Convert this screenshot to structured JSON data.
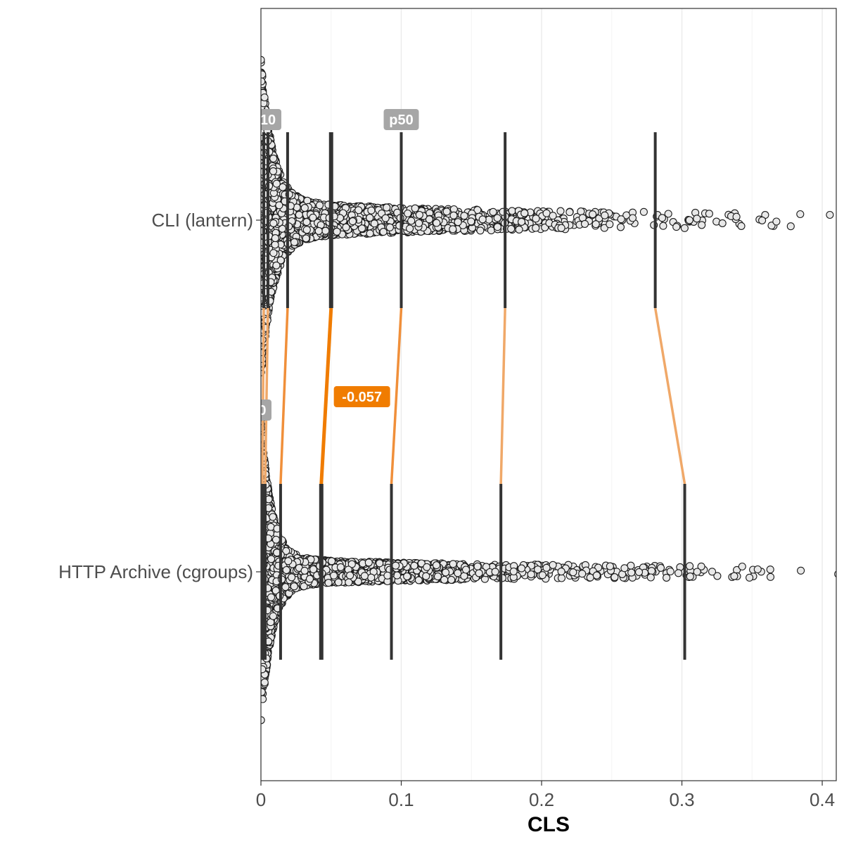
{
  "chart_data": {
    "type": "scatter",
    "subtype": "beeswarm-with-quantile-segments",
    "title": "",
    "xlabel": "CLS",
    "ylabel": "",
    "xlim": [
      0,
      0.41
    ],
    "x_ticks": [
      0,
      0.1,
      0.2,
      0.3,
      0.4
    ],
    "x_tick_labels": [
      "0",
      "0.1",
      "0.2",
      "0.3",
      "0.4"
    ],
    "grid": "vertical major and minor",
    "categories": [
      "CLI (lantern)",
      "HTTP Archive (cgroups)"
    ],
    "series": [
      {
        "name": "CLI (lantern)",
        "quantile_values": [
          0.002,
          0.005,
          0.019,
          0.05,
          0.1,
          0.174,
          0.281
        ]
      },
      {
        "name": "HTTP Archive (cgroups)",
        "quantile_values": [
          0.001,
          0.003,
          0.014,
          0.043,
          0.093,
          0.171,
          0.302
        ]
      }
    ],
    "quantile_labels": [
      {
        "series": "CLI (lantern)",
        "text": "10",
        "x": 0.005
      },
      {
        "series": "CLI (lantern)",
        "text": "p50",
        "x": 0.1
      },
      {
        "series": "HTTP Archive (cgroups)",
        "text": "0",
        "x": 0.001
      }
    ],
    "difference_labels": [
      {
        "text": "-0.057",
        "x": 0.072
      }
    ],
    "colors": {
      "points_fill": "#e8e8e8",
      "points_stroke": "#1a1a1a",
      "segment": "#333333",
      "connector": "#f07c00",
      "connector_light": "#f0a868",
      "label_fill": "#a6a6a6",
      "diff_label_fill": "#f07c00"
    }
  }
}
